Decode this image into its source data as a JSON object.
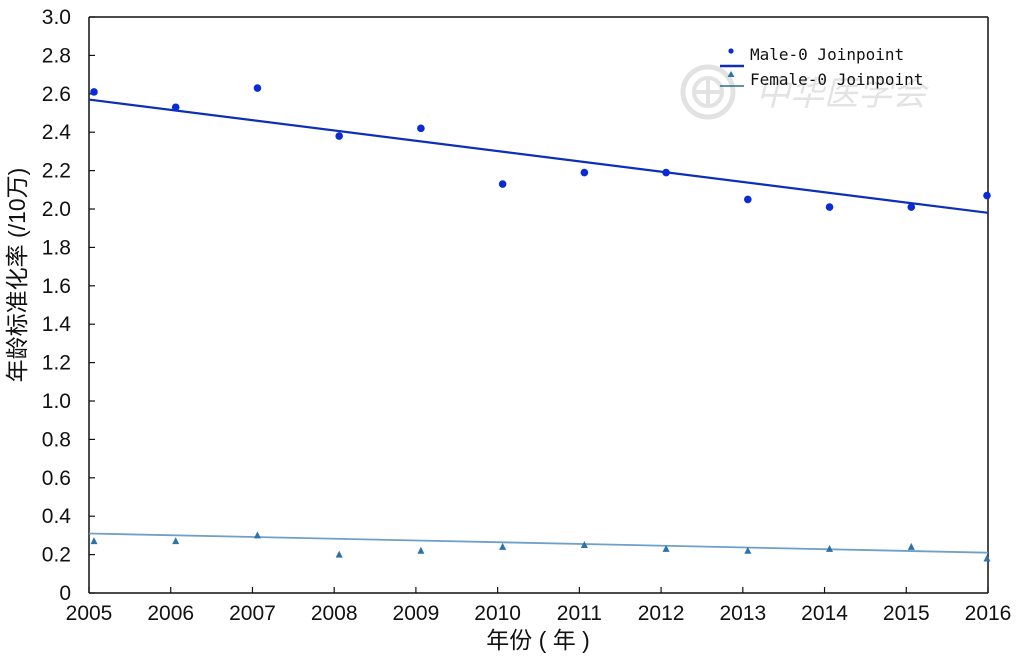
{
  "chart_data": {
    "type": "scatter",
    "title": "",
    "xlabel": "年份 ( 年 )",
    "ylabel": "年龄标准化率 (/10万)",
    "x": [
      2005,
      2006,
      2007,
      2008,
      2009,
      2010,
      2011,
      2012,
      2013,
      2014,
      2015,
      2016
    ],
    "xlim": [
      2005,
      2016
    ],
    "ylim": [
      0,
      3.0
    ],
    "x_ticks": [
      "2005",
      "2006",
      "2007",
      "2008",
      "2009",
      "2010",
      "2011",
      "2012",
      "2013",
      "2014",
      "2015",
      "2016"
    ],
    "y_ticks": [
      "0",
      "0.2",
      "0.4",
      "0.6",
      "0.8",
      "1.0",
      "1.2",
      "1.4",
      "1.6",
      "1.8",
      "2.0",
      "2.2",
      "2.4",
      "2.6",
      "2.8",
      "3.0"
    ],
    "grid": false,
    "legend_position": "top-right",
    "series": [
      {
        "name": "Male-0 Joinpoint",
        "marker": "circle",
        "color": "#0a2bd6",
        "line_color": "#0d2fb8",
        "observed": [
          2.61,
          2.53,
          2.63,
          2.38,
          2.42,
          2.13,
          2.19,
          2.19,
          2.05,
          2.01,
          2.01,
          2.07
        ],
        "fitted": [
          2.57,
          1.98
        ]
      },
      {
        "name": "Female-0 Joinpoint",
        "marker": "triangle",
        "color": "#2e73a8",
        "line_color": "#6fa0c8",
        "observed": [
          0.27,
          0.27,
          0.3,
          0.2,
          0.22,
          0.24,
          0.25,
          0.23,
          0.22,
          0.23,
          0.24,
          0.18
        ],
        "fitted": [
          0.31,
          0.21
        ]
      }
    ]
  },
  "watermark": {
    "text": "中华医学会",
    "emblem_icon": "medical-association-seal-icon"
  }
}
